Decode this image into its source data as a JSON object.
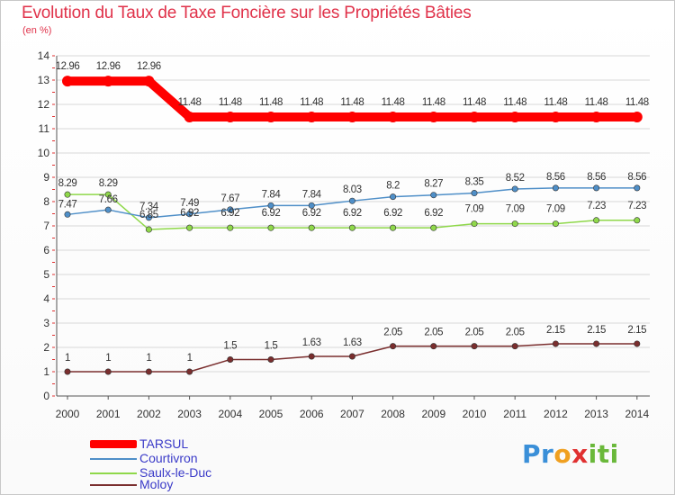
{
  "title": "Evolution du Taux de Taxe Foncière sur les Propriétés Bâties",
  "unit_label": "(en %)",
  "logo": {
    "text": "Proxiti",
    "letters": [
      "P",
      "r",
      "o",
      "x",
      "i",
      "t",
      "i"
    ],
    "colors": [
      "#3a8fd8",
      "#3a8fd8",
      "#f0a020",
      "#e03030",
      "#6ab83a",
      "#6ab83a",
      "#6ab83a"
    ]
  },
  "colors": {
    "title": "#e0324a",
    "tarsul": "#ff0000",
    "courtivron": "#4f8fc8",
    "saulx": "#8fd84a",
    "moloy": "#7a2e2e",
    "grid": "#d8d8d8",
    "axis_tick": "#e03030"
  },
  "chart_data": {
    "type": "line",
    "title": "Evolution du Taux de Taxe Foncière sur les Propriétés Bâties",
    "ylabel": "(en %)",
    "xlabel": "",
    "ylim": [
      0,
      14
    ],
    "yticks": [
      "0",
      "1",
      "2",
      "3",
      "4",
      "5",
      "6",
      "7",
      "8",
      "9",
      "10",
      "11",
      "12",
      "13",
      "14"
    ],
    "categories": [
      "2000",
      "2001",
      "2002",
      "2003",
      "2004",
      "2005",
      "2006",
      "2007",
      "2008",
      "2009",
      "2010",
      "2011",
      "2012",
      "2013",
      "2014"
    ],
    "series": [
      {
        "name": "TARSUL",
        "color": "#ff0000",
        "values": [
          12.96,
          12.96,
          12.96,
          11.48,
          11.48,
          11.48,
          11.48,
          11.48,
          11.48,
          11.48,
          11.48,
          11.48,
          11.48,
          11.48,
          11.48
        ],
        "labels": [
          "12.96",
          "12.96",
          "12.96",
          "11.48",
          "11.48",
          "11.48",
          "11.48",
          "11.48",
          "11.48",
          "11.48",
          "11.48",
          "11.48",
          "11.48",
          "11.48",
          "11.48"
        ]
      },
      {
        "name": "Courtivron",
        "color": "#4f8fc8",
        "values": [
          7.47,
          7.66,
          7.34,
          7.49,
          7.67,
          7.84,
          7.84,
          8.03,
          8.2,
          8.27,
          8.35,
          8.52,
          8.56,
          8.56,
          8.56
        ],
        "labels": [
          "7.47",
          "7.66",
          "7.34",
          "7.49",
          "7.67",
          "7.84",
          "7.84",
          "8.03",
          "8.2",
          "8.27",
          "8.35",
          "8.52",
          "8.56",
          "8.56",
          "8.56"
        ]
      },
      {
        "name": "Saulx-le-Duc",
        "color": "#8fd84a",
        "values": [
          8.29,
          8.29,
          6.85,
          6.92,
          6.92,
          6.92,
          6.92,
          6.92,
          6.92,
          6.92,
          7.09,
          7.09,
          7.09,
          7.23,
          7.23
        ],
        "labels": [
          "8.29",
          "8.29",
          "6.85",
          "6.92",
          "6.92",
          "6.92",
          "6.92",
          "6.92",
          "6.92",
          "6.92",
          "7.09",
          "7.09",
          "7.09",
          "7.23",
          "7.23"
        ]
      },
      {
        "name": "Moloy",
        "color": "#7a2e2e",
        "values": [
          1,
          1,
          1,
          1,
          1.5,
          1.5,
          1.63,
          1.63,
          2.05,
          2.05,
          2.05,
          2.05,
          2.15,
          2.15,
          2.15
        ],
        "labels": [
          "1",
          "1",
          "1",
          "1",
          "1.5",
          "1.5",
          "1.63",
          "1.63",
          "2.05",
          "2.05",
          "2.05",
          "2.05",
          "2.15",
          "2.15",
          "2.15"
        ]
      }
    ],
    "legend": [
      "TARSUL",
      "Courtivron",
      "Saulx-le-Duc",
      "Moloy"
    ],
    "legend_position": "bottom-left",
    "grid": true
  }
}
